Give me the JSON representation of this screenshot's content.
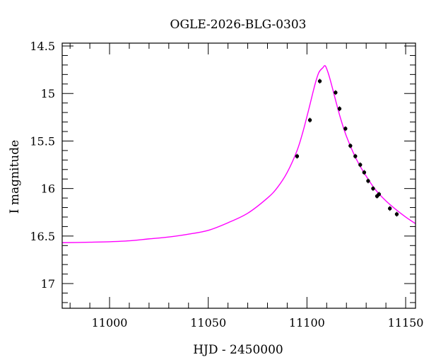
{
  "chart_data": {
    "type": "scatter",
    "title": "OGLE-2026-BLG-0303",
    "xlabel": "HJD - 2450000",
    "ylabel": "I magnitude",
    "xlim": [
      10976,
      11155
    ],
    "ylim": [
      17.26,
      14.47
    ],
    "y_inverted": true,
    "grid": false,
    "x_ticks": [
      11000,
      11050,
      11100,
      11150
    ],
    "x_tick_labels": [
      "11000",
      "11050",
      "11100",
      "11150"
    ],
    "y_ticks": [
      14.5,
      15,
      15.5,
      16,
      16.5,
      17
    ],
    "y_tick_labels": [
      "14.5",
      "15",
      "15.5",
      "16",
      "16.5",
      "17"
    ],
    "series": [
      {
        "kind": "points",
        "color": "#000000",
        "x": [
          11095.0,
          11101.5,
          11106.5,
          11114.5,
          11116.5,
          11119.5,
          11122.0,
          11124.5,
          11127.0,
          11129.0,
          11131.0,
          11133.5,
          11135.5,
          11136.5,
          11142.0,
          11145.5
        ],
        "y": [
          15.66,
          15.28,
          14.87,
          14.99,
          15.16,
          15.37,
          15.55,
          15.66,
          15.75,
          15.83,
          15.92,
          16.0,
          16.08,
          16.06,
          16.21,
          16.27
        ]
      },
      {
        "kind": "model",
        "color": "#ff00ff",
        "x": [
          10976,
          10990,
          11000,
          11010,
          11020,
          11030,
          11040,
          11050,
          11060,
          11070,
          11080,
          11085,
          11090,
          11095,
          11098,
          11101,
          11104,
          11106,
          11108,
          11109.3,
          11111,
          11113,
          11115,
          11117,
          11120,
          11125,
          11130,
          11135,
          11140,
          11145,
          11150,
          11155
        ],
        "y": [
          16.57,
          16.565,
          16.56,
          16.55,
          16.53,
          16.51,
          16.48,
          16.44,
          16.36,
          16.26,
          16.1,
          15.99,
          15.83,
          15.6,
          15.4,
          15.16,
          14.91,
          14.78,
          14.73,
          14.71,
          14.8,
          14.95,
          15.11,
          15.26,
          15.45,
          15.69,
          15.87,
          16.02,
          16.13,
          16.22,
          16.3,
          16.37
        ]
      }
    ]
  }
}
